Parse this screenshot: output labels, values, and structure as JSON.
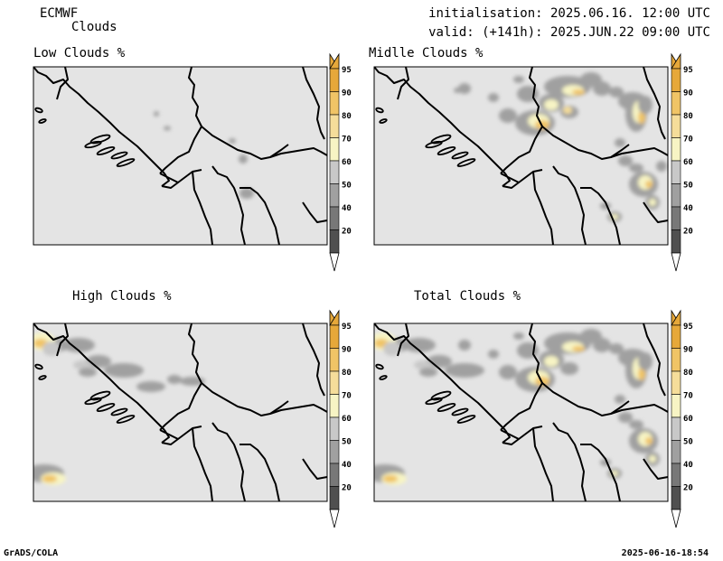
{
  "header": {
    "model": "ECMWF",
    "field": "Clouds",
    "init": "initialisation: 2025.06.16. 12:00 UTC",
    "valid": "valid: (+141h): 2025.JUN.22 09:00 UTC"
  },
  "panels": [
    {
      "title": "Low Clouds %"
    },
    {
      "title": "Midlle Clouds %"
    },
    {
      "title": "High Clouds %"
    },
    {
      "title": "Total Clouds %"
    }
  ],
  "colorbar": {
    "labels": [
      "95",
      "90",
      "80",
      "70",
      "60",
      "50",
      "40",
      "20"
    ],
    "colors": [
      "#e6a83a",
      "#f0c466",
      "#f5dd9a",
      "#f7f4c4",
      "#c8c8c8",
      "#a0a0a0",
      "#787878",
      "#505050"
    ]
  },
  "map_colors": {
    "background": "#e4e4e4",
    "border": "#000000"
  },
  "footer": {
    "left": "GrADS/COLA",
    "right": "2025-06-16-18:54"
  }
}
